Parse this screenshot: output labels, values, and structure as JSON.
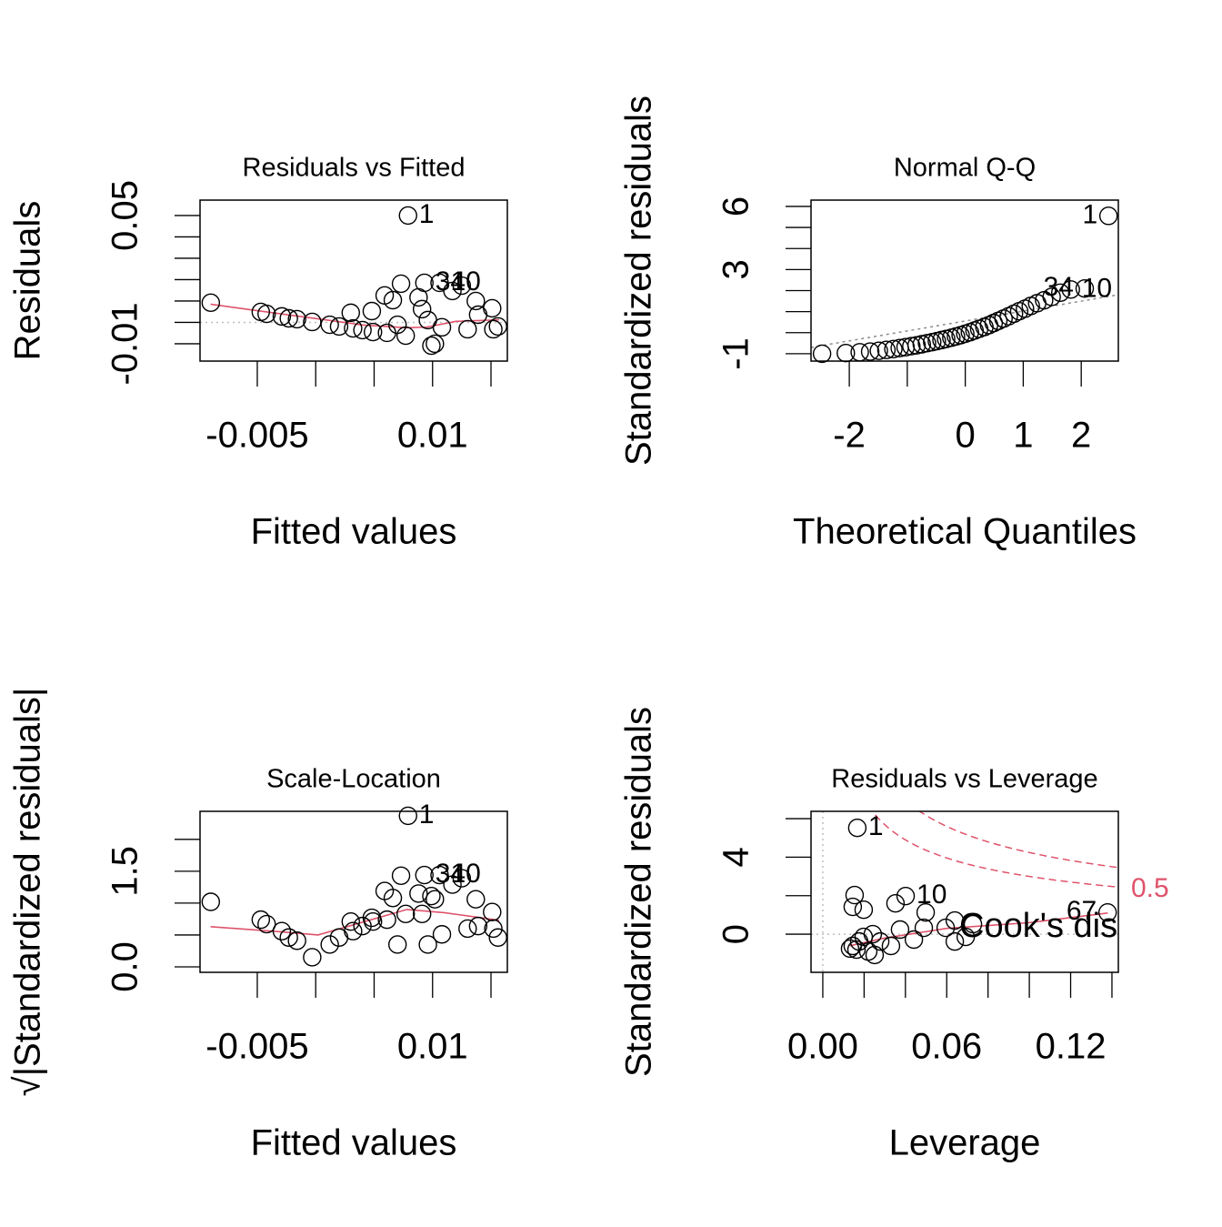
{
  "chart_data": [
    {
      "type": "scatter",
      "title": "Residuals vs Fitted",
      "xlabel": "Fitted values",
      "ylabel": "Residuals",
      "xlim": [
        -0.0099,
        0.0164
      ],
      "ylim": [
        -0.0181,
        0.0572
      ],
      "xticks": [
        -0.005,
        0.01
      ],
      "xminor": [
        0,
        0.005,
        0.015
      ],
      "yticks": [
        -0.01,
        0.05
      ],
      "yminor": [
        0,
        0.01,
        0.02,
        0.03,
        0.04
      ],
      "x": [
        -0.00898,
        -0.0047,
        -0.0042,
        -0.0029,
        -0.0023,
        -0.0016,
        -0.0003,
        0.0012,
        0.002,
        0.003,
        0.0032,
        0.004,
        0.0048,
        0.0049,
        0.0059,
        0.0061,
        0.0066,
        0.007,
        0.0073,
        0.0077,
        0.0079,
        0.0088,
        0.0091,
        0.0093,
        0.0096,
        0.0099,
        0.0102,
        0.0106,
        0.0108,
        0.0117,
        0.0125,
        0.013,
        0.0137,
        0.0139,
        0.0151,
        0.0152,
        0.0156
      ],
      "y": [
        0.0092,
        0.0049,
        0.004,
        0.0028,
        0.0019,
        0.0015,
        0.0002,
        -0.0011,
        -0.0019,
        0.0045,
        -0.0028,
        -0.0036,
        0.0053,
        -0.0045,
        0.0126,
        -0.0049,
        0.0104,
        -0.0011,
        0.0181,
        -0.0062,
        0.05,
        0.0117,
        0.0062,
        0.0185,
        0.0011,
        -0.0109,
        -0.01,
        0.0185,
        -0.0023,
        0.0147,
        0.0172,
        -0.0032,
        0.01,
        0.0036,
        0.0066,
        -0.0032,
        -0.0019
      ],
      "point_labels": [
        null,
        null,
        null,
        null,
        null,
        null,
        null,
        null,
        null,
        null,
        null,
        null,
        null,
        null,
        null,
        null,
        null,
        null,
        null,
        null,
        "1",
        null,
        null,
        "34",
        null,
        null,
        null,
        "10",
        null,
        null,
        null,
        null,
        null,
        null,
        null,
        null,
        null
      ],
      "point_color": "#000000",
      "smooth": {
        "color": "#DF536B",
        "x": [
          -0.009,
          -0.005,
          0,
          0.004,
          0.0078,
          0.0095,
          0.012,
          0.0157
        ],
        "y": [
          0.0085,
          0.0055,
          0.0018,
          -0.0012,
          -0.0025,
          -0.0022,
          0.0005,
          0.0012
        ]
      },
      "hline": 0,
      "ref_color": "#BEBEBE"
    },
    {
      "type": "scatter",
      "title": "Normal Q-Q",
      "xlabel": "Theoretical Quantiles",
      "ylabel": "Standardized residuals",
      "xlim": [
        -2.66,
        2.64
      ],
      "ylim": [
        -1.35,
        6.3
      ],
      "xticks": [
        -2,
        0,
        1,
        2
      ],
      "xminor": [
        -1
      ],
      "yticks": [
        -1,
        3,
        6
      ],
      "yminor": [
        0,
        1,
        2,
        4,
        5
      ],
      "x": [
        -2.47,
        -2.06,
        -1.82,
        -1.64,
        -1.49,
        -1.36,
        -1.24,
        -1.13,
        -1.03,
        -0.93,
        -0.84,
        -0.75,
        -0.66,
        -0.57,
        -0.49,
        -0.41,
        -0.33,
        -0.24,
        -0.16,
        -0.08,
        0,
        0.08,
        0.16,
        0.24,
        0.33,
        0.41,
        0.49,
        0.57,
        0.66,
        0.75,
        0.84,
        0.93,
        1.03,
        1.13,
        1.24,
        1.36,
        1.49,
        1.64,
        1.82,
        2.06,
        2.47
      ],
      "y": [
        -1.0,
        -0.97,
        -0.93,
        -0.9,
        -0.86,
        -0.82,
        -0.78,
        -0.73,
        -0.69,
        -0.64,
        -0.6,
        -0.55,
        -0.5,
        -0.45,
        -0.4,
        -0.35,
        -0.3,
        -0.24,
        -0.18,
        -0.12,
        -0.05,
        0.02,
        0.1,
        0.18,
        0.27,
        0.36,
        0.46,
        0.56,
        0.67,
        0.78,
        0.9,
        1.02,
        1.14,
        1.27,
        1.4,
        1.54,
        1.7,
        1.9,
        2.05,
        2.1,
        5.55
      ],
      "point_labels": [
        null,
        null,
        null,
        null,
        null,
        null,
        null,
        null,
        null,
        null,
        null,
        null,
        null,
        null,
        null,
        null,
        null,
        null,
        null,
        null,
        null,
        null,
        null,
        null,
        null,
        null,
        null,
        null,
        null,
        null,
        null,
        null,
        null,
        null,
        null,
        null,
        null,
        null,
        "10",
        "34",
        "1"
      ],
      "point_color": "#000000",
      "refline": {
        "x": [
          -2.66,
          2.64
        ],
        "y": [
          -0.7,
          1.8
        ]
      },
      "ref_color": "#8C8C8C"
    },
    {
      "type": "scatter",
      "title": "Scale-Location",
      "xlabel": "Fitted values",
      "ylabel": "√|Standardized residuals|",
      "xlim": [
        -0.0099,
        0.0164
      ],
      "ylim": [
        -0.086,
        2.44
      ],
      "xticks": [
        -0.005,
        0.01
      ],
      "xminor": [
        0,
        0.005,
        0.015
      ],
      "yticks": [
        {
          "value": 0,
          "label": "0.0"
        },
        1.5
      ],
      "yminor": [
        0.5,
        1,
        2
      ],
      "x": [
        -0.00898,
        -0.0047,
        -0.0042,
        -0.0029,
        -0.0023,
        -0.0016,
        -0.0003,
        0.0012,
        0.002,
        0.003,
        0.0032,
        0.004,
        0.0048,
        0.0049,
        0.0059,
        0.0061,
        0.0066,
        0.007,
        0.0073,
        0.0077,
        0.0079,
        0.0088,
        0.0091,
        0.0093,
        0.0096,
        0.0099,
        0.0102,
        0.0106,
        0.0108,
        0.0117,
        0.0125,
        0.013,
        0.0137,
        0.0139,
        0.0151,
        0.0152,
        0.0156
      ],
      "y": [
        1.02,
        0.74,
        0.67,
        0.56,
        0.46,
        0.41,
        0.15,
        0.35,
        0.46,
        0.71,
        0.56,
        0.64,
        0.77,
        0.71,
        1.19,
        0.74,
        1.08,
        0.35,
        1.43,
        0.83,
        2.37,
        1.15,
        0.83,
        1.44,
        0.35,
        1.11,
        1.06,
        1.44,
        0.51,
        1.29,
        1.39,
        0.6,
        1.06,
        0.64,
        0.86,
        0.6,
        0.46
      ],
      "point_labels": [
        null,
        null,
        null,
        null,
        null,
        null,
        null,
        null,
        null,
        null,
        null,
        null,
        null,
        null,
        null,
        null,
        null,
        null,
        null,
        null,
        "1",
        null,
        null,
        "34",
        null,
        null,
        null,
        "10",
        null,
        null,
        null,
        null,
        null,
        null,
        null,
        null,
        null
      ],
      "point_color": "#000000",
      "smooth": {
        "color": "#DF536B",
        "x": [
          -0.009,
          -0.003,
          0.0002,
          0.004,
          0.0078,
          0.011,
          0.0157
        ],
        "y": [
          0.63,
          0.55,
          0.5,
          0.7,
          0.9,
          0.85,
          0.73
        ]
      }
    },
    {
      "type": "scatter",
      "title": "Residuals vs Leverage",
      "xlabel": "Leverage",
      "ylabel": "Standardized residuals",
      "xlim": [
        -0.0057,
        0.1431
      ],
      "ylim": [
        -1.98,
        6.38
      ],
      "xticks": [
        {
          "value": 0,
          "label": "0.00"
        },
        0.06,
        0.12
      ],
      "xminor": [
        0.02,
        0.04,
        0.08,
        0.1,
        0.14
      ],
      "yticks": [
        0,
        4
      ],
      "yminor": [
        2,
        6
      ],
      "x": [
        0.0167,
        0.0154,
        0.0401,
        0.0352,
        0.0498,
        0.0145,
        0.0198,
        0.1379,
        0.0639,
        0.0727,
        0.0489,
        0.0374,
        0.0242,
        0.0176,
        0.0145,
        0.0163,
        0.0132,
        0.022,
        0.0251,
        0.0441,
        0.0639,
        0.0692,
        0.0278,
        0.0198,
        0.0595,
        0.033
      ],
      "y": [
        5.52,
        2.03,
        1.98,
        1.6,
        1.13,
        1.42,
        1.27,
        1.13,
        0.71,
        0.52,
        0.33,
        0.24,
        0.0,
        -0.38,
        -0.61,
        -0.8,
        -0.75,
        -0.9,
        -1.08,
        -0.28,
        -0.38,
        -0.14,
        -0.38,
        -0.14,
        0.33,
        -0.61
      ],
      "point_labels": [
        "1",
        null,
        "10",
        null,
        null,
        null,
        null,
        "67",
        null,
        null,
        null,
        null,
        null,
        null,
        null,
        null,
        null,
        null,
        null,
        null,
        null,
        null,
        null,
        null,
        null,
        null
      ],
      "point_color": "#000000",
      "smooth": {
        "color": "#DF536B",
        "x": [
          0.013,
          0.03,
          0.06,
          0.1,
          0.138
        ],
        "y": [
          -0.6,
          -0.2,
          0.3,
          0.6,
          1.1
        ]
      },
      "hline": 0,
      "vline": 0,
      "ref_color": "#BEBEBE",
      "cook_levels": [
        0.5,
        1
      ],
      "cook_labeled": [
        true,
        false
      ],
      "cook_params": 2,
      "cook_color": "#DF536B",
      "legend": "Cook's distance"
    }
  ]
}
